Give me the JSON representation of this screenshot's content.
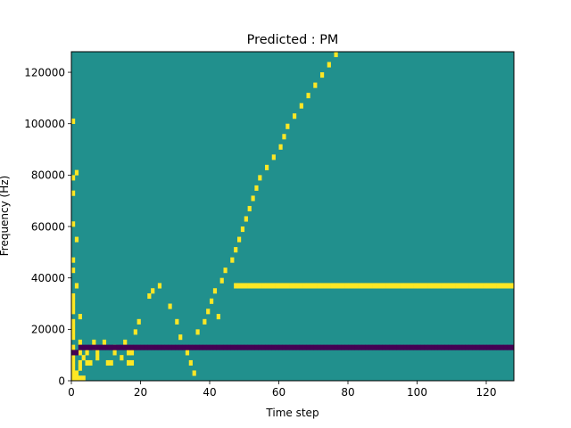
{
  "chart_data": {
    "type": "heatmap",
    "title": "Predicted : PM",
    "xlabel": "Time step",
    "ylabel": "Frequency (Hz)",
    "xlim": [
      0,
      128
    ],
    "ylim": [
      0,
      128000
    ],
    "x_ticks": [
      0,
      20,
      40,
      60,
      80,
      100,
      120
    ],
    "y_ticks": [
      0,
      20000,
      40000,
      60000,
      80000,
      100000,
      120000
    ],
    "x_tick_labels": [
      "0",
      "20",
      "40",
      "60",
      "80",
      "100",
      "120"
    ],
    "y_tick_labels": [
      "0",
      "20000",
      "40000",
      "60000",
      "80000",
      "100000",
      "120000"
    ],
    "grid": false,
    "legend": "none",
    "colormap": "viridis",
    "values_range": [
      -1,
      1
    ],
    "background_value": 0,
    "colors": {
      "background": "#21908d",
      "high": "#fde725",
      "low": "#440154"
    },
    "freq_bin_hz": 2000,
    "cells": {
      "high": [
        [
          0,
          0
        ],
        [
          1,
          0
        ],
        [
          2,
          0
        ],
        [
          3,
          0
        ],
        [
          0,
          1
        ],
        [
          1,
          1
        ],
        [
          0,
          2
        ],
        [
          2,
          2
        ],
        [
          0,
          3
        ],
        [
          2,
          3
        ],
        [
          0,
          4
        ],
        [
          3,
          4
        ],
        [
          7,
          4
        ],
        [
          0,
          5
        ],
        [
          2,
          5
        ],
        [
          4,
          5
        ],
        [
          0,
          6
        ],
        [
          6,
          6
        ],
        [
          12,
          6
        ],
        [
          2,
          7
        ],
        [
          6,
          7
        ],
        [
          0,
          8
        ],
        [
          0,
          9
        ],
        [
          0,
          10
        ],
        [
          0,
          11
        ],
        [
          2,
          12
        ],
        [
          0,
          13
        ],
        [
          0,
          14
        ],
        [
          0,
          15
        ],
        [
          0,
          16
        ],
        [
          1,
          18
        ],
        [
          0,
          21
        ],
        [
          0,
          23
        ],
        [
          1,
          27
        ],
        [
          0,
          30
        ],
        [
          0,
          36
        ],
        [
          0,
          39
        ],
        [
          1,
          40
        ],
        [
          0,
          50
        ],
        [
          4,
          3
        ],
        [
          5,
          3
        ],
        [
          7,
          5
        ],
        [
          9,
          7
        ],
        [
          10,
          3
        ],
        [
          11,
          3
        ],
        [
          12,
          5
        ],
        [
          14,
          4
        ],
        [
          15,
          7
        ],
        [
          16,
          3
        ],
        [
          17,
          3
        ],
        [
          16,
          5
        ],
        [
          17,
          5
        ],
        [
          18,
          9
        ],
        [
          19,
          11
        ],
        [
          22,
          16
        ],
        [
          23,
          17
        ],
        [
          25,
          18
        ],
        [
          28,
          14
        ],
        [
          30,
          11
        ],
        [
          31,
          8
        ],
        [
          33,
          5
        ],
        [
          34,
          3
        ],
        [
          35,
          1
        ],
        [
          36,
          9
        ],
        [
          38,
          11
        ],
        [
          39,
          13
        ],
        [
          40,
          15
        ],
        [
          41,
          17
        ],
        [
          42,
          12
        ],
        [
          43,
          19
        ],
        [
          44,
          21
        ],
        [
          46,
          23
        ],
        [
          47,
          25
        ],
        [
          48,
          27
        ],
        [
          49,
          29
        ],
        [
          50,
          31
        ],
        [
          51,
          33
        ],
        [
          52,
          35
        ],
        [
          53,
          37
        ],
        [
          54,
          39
        ],
        [
          56,
          41
        ],
        [
          58,
          43
        ],
        [
          60,
          45
        ],
        [
          61,
          47
        ],
        [
          62,
          49
        ],
        [
          64,
          51
        ],
        [
          66,
          53
        ],
        [
          68,
          55
        ],
        [
          70,
          57
        ],
        [
          72,
          59
        ],
        [
          74,
          61
        ],
        [
          76,
          63
        ],
        [
          47,
          18
        ],
        [
          48,
          18
        ],
        [
          49,
          18
        ],
        [
          50,
          18
        ],
        [
          51,
          18
        ],
        [
          52,
          18
        ],
        [
          53,
          18
        ],
        [
          54,
          18
        ],
        [
          55,
          18
        ],
        [
          56,
          18
        ],
        [
          57,
          18
        ],
        [
          58,
          18
        ],
        [
          59,
          18
        ],
        [
          60,
          18
        ],
        [
          61,
          18
        ],
        [
          62,
          18
        ],
        [
          63,
          18
        ],
        [
          64,
          18
        ],
        [
          65,
          18
        ],
        [
          66,
          18
        ],
        [
          67,
          18
        ],
        [
          68,
          18
        ],
        [
          69,
          18
        ],
        [
          70,
          18
        ],
        [
          71,
          18
        ],
        [
          72,
          18
        ],
        [
          73,
          18
        ],
        [
          74,
          18
        ],
        [
          75,
          18
        ],
        [
          76,
          18
        ],
        [
          77,
          18
        ],
        [
          78,
          18
        ],
        [
          79,
          18
        ],
        [
          80,
          18
        ],
        [
          81,
          18
        ],
        [
          82,
          18
        ],
        [
          83,
          18
        ],
        [
          84,
          18
        ],
        [
          85,
          18
        ],
        [
          86,
          18
        ],
        [
          87,
          18
        ],
        [
          88,
          18
        ],
        [
          89,
          18
        ],
        [
          90,
          18
        ],
        [
          91,
          18
        ],
        [
          92,
          18
        ],
        [
          93,
          18
        ],
        [
          94,
          18
        ],
        [
          95,
          18
        ],
        [
          96,
          18
        ],
        [
          97,
          18
        ],
        [
          98,
          18
        ],
        [
          99,
          18
        ],
        [
          100,
          18
        ],
        [
          101,
          18
        ],
        [
          102,
          18
        ],
        [
          103,
          18
        ],
        [
          104,
          18
        ],
        [
          105,
          18
        ],
        [
          106,
          18
        ],
        [
          107,
          18
        ],
        [
          108,
          18
        ],
        [
          109,
          18
        ],
        [
          110,
          18
        ],
        [
          111,
          18
        ],
        [
          112,
          18
        ],
        [
          113,
          18
        ],
        [
          114,
          18
        ],
        [
          115,
          18
        ],
        [
          116,
          18
        ],
        [
          117,
          18
        ],
        [
          118,
          18
        ],
        [
          119,
          18
        ],
        [
          120,
          18
        ],
        [
          121,
          18
        ],
        [
          122,
          18
        ],
        [
          123,
          18
        ],
        [
          124,
          18
        ],
        [
          125,
          18
        ],
        [
          126,
          18
        ],
        [
          127,
          18
        ]
      ],
      "low": [
        [
          0,
          5
        ],
        [
          1,
          5
        ],
        [
          2,
          6
        ],
        [
          3,
          6
        ],
        [
          4,
          6
        ],
        [
          5,
          6
        ],
        [
          6,
          6
        ],
        [
          7,
          6
        ],
        [
          8,
          6
        ],
        [
          9,
          6
        ],
        [
          10,
          6
        ],
        [
          11,
          6
        ],
        [
          12,
          6
        ],
        [
          13,
          6
        ],
        [
          14,
          6
        ],
        [
          15,
          6
        ],
        [
          16,
          6
        ],
        [
          17,
          6
        ],
        [
          18,
          6
        ],
        [
          19,
          6
        ],
        [
          20,
          6
        ],
        [
          21,
          6
        ],
        [
          22,
          6
        ],
        [
          23,
          6
        ],
        [
          24,
          6
        ],
        [
          25,
          6
        ],
        [
          26,
          6
        ],
        [
          27,
          6
        ],
        [
          28,
          6
        ],
        [
          29,
          6
        ],
        [
          30,
          6
        ],
        [
          31,
          6
        ],
        [
          32,
          6
        ],
        [
          33,
          6
        ],
        [
          34,
          6
        ],
        [
          35,
          6
        ],
        [
          36,
          6
        ],
        [
          37,
          6
        ],
        [
          38,
          6
        ],
        [
          39,
          6
        ],
        [
          40,
          6
        ],
        [
          41,
          6
        ],
        [
          42,
          6
        ],
        [
          43,
          6
        ],
        [
          44,
          6
        ],
        [
          45,
          6
        ],
        [
          46,
          6
        ],
        [
          47,
          6
        ],
        [
          48,
          6
        ],
        [
          49,
          6
        ],
        [
          50,
          6
        ],
        [
          51,
          6
        ],
        [
          52,
          6
        ],
        [
          53,
          6
        ],
        [
          54,
          6
        ],
        [
          55,
          6
        ],
        [
          56,
          6
        ],
        [
          57,
          6
        ],
        [
          58,
          6
        ],
        [
          59,
          6
        ],
        [
          60,
          6
        ],
        [
          61,
          6
        ],
        [
          62,
          6
        ],
        [
          63,
          6
        ],
        [
          64,
          6
        ],
        [
          65,
          6
        ],
        [
          66,
          6
        ],
        [
          67,
          6
        ],
        [
          68,
          6
        ],
        [
          69,
          6
        ],
        [
          70,
          6
        ],
        [
          71,
          6
        ],
        [
          72,
          6
        ],
        [
          73,
          6
        ],
        [
          74,
          6
        ],
        [
          75,
          6
        ],
        [
          76,
          6
        ],
        [
          77,
          6
        ],
        [
          78,
          6
        ],
        [
          79,
          6
        ],
        [
          80,
          6
        ],
        [
          81,
          6
        ],
        [
          82,
          6
        ],
        [
          83,
          6
        ],
        [
          84,
          6
        ],
        [
          85,
          6
        ],
        [
          86,
          6
        ],
        [
          87,
          6
        ],
        [
          88,
          6
        ],
        [
          89,
          6
        ],
        [
          90,
          6
        ],
        [
          91,
          6
        ],
        [
          92,
          6
        ],
        [
          93,
          6
        ],
        [
          94,
          6
        ],
        [
          95,
          6
        ],
        [
          96,
          6
        ],
        [
          97,
          6
        ],
        [
          98,
          6
        ],
        [
          99,
          6
        ],
        [
          100,
          6
        ],
        [
          101,
          6
        ],
        [
          102,
          6
        ],
        [
          103,
          6
        ],
        [
          104,
          6
        ],
        [
          105,
          6
        ],
        [
          106,
          6
        ],
        [
          107,
          6
        ],
        [
          108,
          6
        ],
        [
          109,
          6
        ],
        [
          110,
          6
        ],
        [
          111,
          6
        ],
        [
          112,
          6
        ],
        [
          113,
          6
        ],
        [
          114,
          6
        ],
        [
          115,
          6
        ],
        [
          116,
          6
        ],
        [
          117,
          6
        ],
        [
          118,
          6
        ],
        [
          119,
          6
        ],
        [
          120,
          6
        ],
        [
          121,
          6
        ],
        [
          122,
          6
        ],
        [
          123,
          6
        ],
        [
          124,
          6
        ],
        [
          125,
          6
        ],
        [
          126,
          6
        ],
        [
          127,
          6
        ]
      ]
    }
  }
}
